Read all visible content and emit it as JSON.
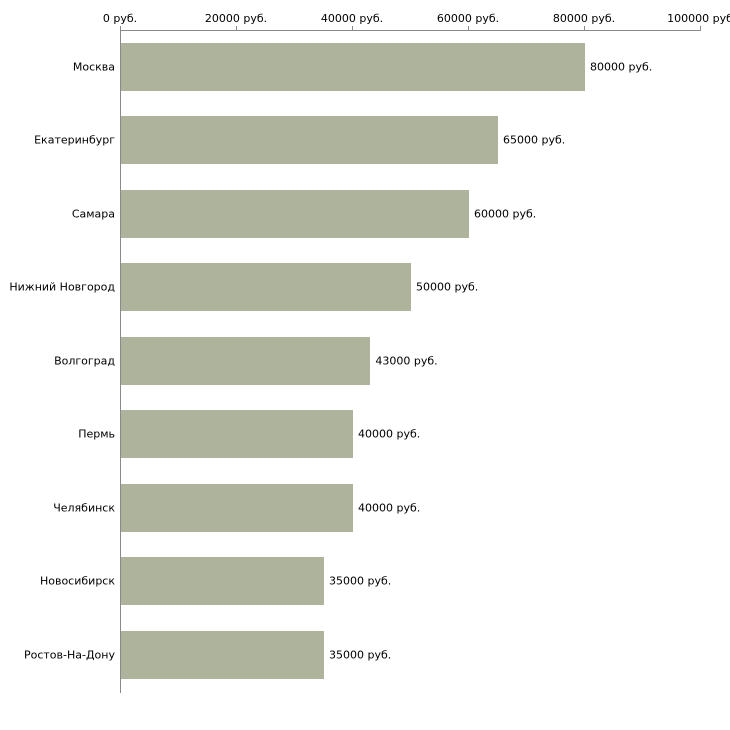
{
  "chart_data": {
    "type": "bar",
    "orientation": "horizontal",
    "title": "",
    "xlabel": "",
    "ylabel": "",
    "categories": [
      "Москва",
      "Екатеринбург",
      "Самара",
      "Нижний Новгород",
      "Волгоград",
      "Пермь",
      "Челябинск",
      "Новосибирск",
      "Ростов-На-Дону"
    ],
    "values": [
      80000,
      65000,
      60000,
      50000,
      43000,
      40000,
      40000,
      35000,
      35000
    ],
    "value_labels": [
      "80000 руб.",
      "65000 руб.",
      "60000 руб.",
      "50000 руб.",
      "43000 руб.",
      "40000 руб.",
      "40000 руб.",
      "35000 руб.",
      "35000 руб."
    ],
    "xlim": [
      0,
      100000
    ],
    "x_tick_values": [
      0,
      20000,
      40000,
      60000,
      80000,
      100000
    ],
    "x_tick_labels": [
      "0 руб.",
      "20000 руб.",
      "40000 руб.",
      "60000 руб.",
      "80000 руб.",
      "100000 руб"
    ],
    "grid": false,
    "legend": false,
    "bar_color": "#aeb49c",
    "axis_color": "#8a8a8a",
    "text_color": "#000000"
  }
}
